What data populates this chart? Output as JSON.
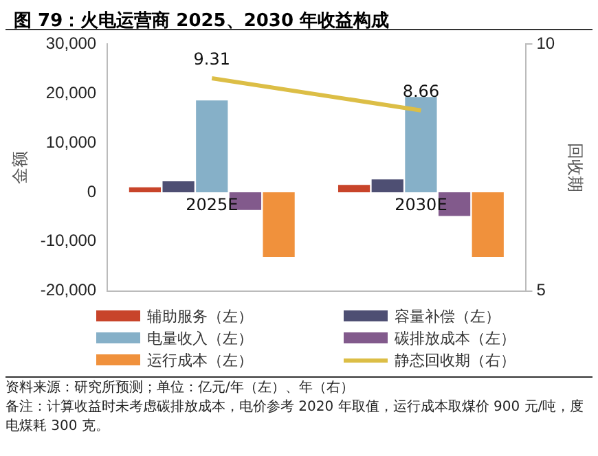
{
  "chart_data": {
    "type": "bar",
    "title": "图 79：火电运营商 2025、2030 年收益构成",
    "ylabel": "金额",
    "y2label": "回收期",
    "categories": [
      "2025E",
      "2030E"
    ],
    "series": [
      {
        "name": "辅助服务（左）",
        "color": "#c8442a",
        "values": [
          1000,
          1500
        ]
      },
      {
        "name": "容量补偿（左）",
        "color": "#4e4f73",
        "values": [
          2200,
          2600
        ]
      },
      {
        "name": "电量收入（左）",
        "color": "#86b0c8",
        "values": [
          18600,
          19300
        ]
      },
      {
        "name": "碳排放成本（左）",
        "color": "#825a8c",
        "values": [
          -3600,
          -4800
        ]
      },
      {
        "name": "运行成本（左）",
        "color": "#f0913c",
        "values": [
          -13100,
          -13100
        ]
      },
      {
        "name": "静态回收期（右）",
        "type": "line",
        "axis": "y2",
        "color": "#dcbe46",
        "values": [
          9.31,
          8.66
        ],
        "value_labels": [
          "9.31",
          "8.66"
        ],
        "marker": "none"
      }
    ],
    "ylim": [
      -20000,
      30000
    ],
    "yticks": [
      {
        "value": -20000,
        "label": "-20,000"
      },
      {
        "value": -10000,
        "label": "-10,000"
      },
      0,
      {
        "value": 10000,
        "label": "10,000"
      },
      {
        "value": 20000,
        "label": "20,000"
      },
      {
        "value": 30000,
        "label": "30,000"
      }
    ],
    "y2lim": [
      5,
      10
    ],
    "y2ticks": [
      5,
      10
    ],
    "grid": false,
    "legend": "bottom",
    "annotations": [
      "资料来源：研究所预测；单位：亿元/年（左）、年（右）",
      "备注：计算收益时未考虑碳排放成本，电价参考 2020 年取值，运行成本取煤价 900 元/吨，度电煤耗 300 克。"
    ]
  }
}
